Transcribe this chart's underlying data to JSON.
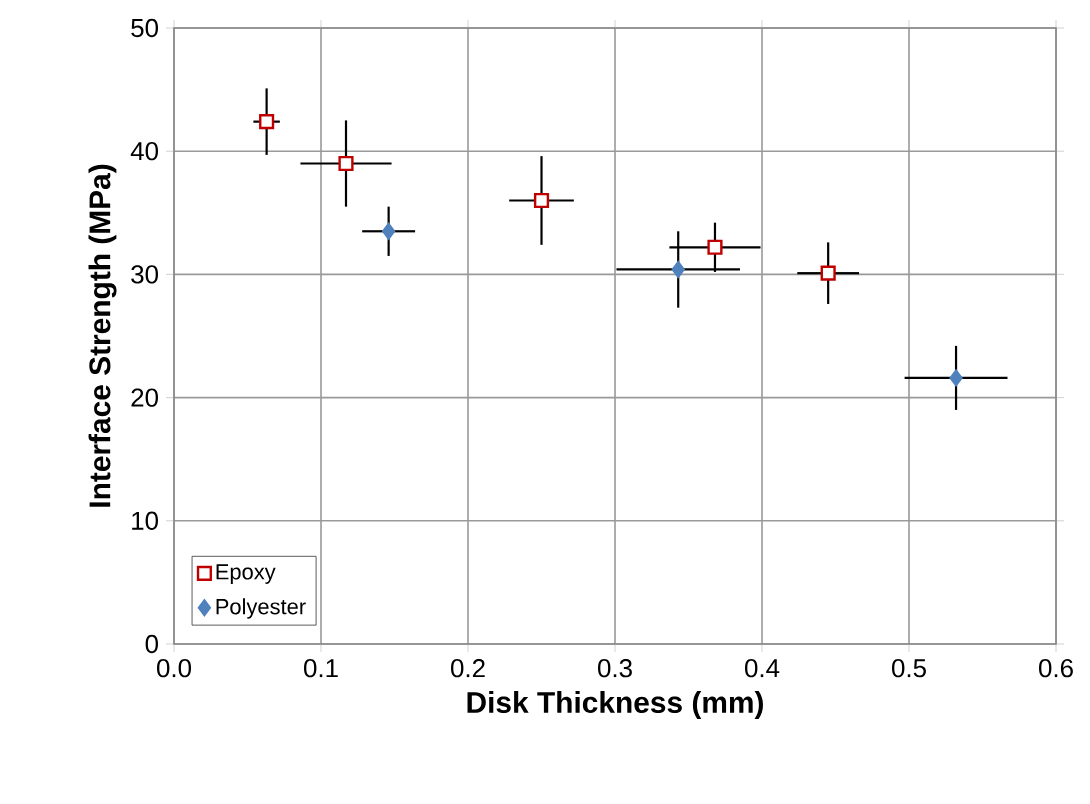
{
  "chart_data": {
    "type": "scatter",
    "xlabel": "Disk Thickness (mm)",
    "ylabel": "Interface Strength (MPa)",
    "xlim": [
      0,
      0.6
    ],
    "ylim": [
      0,
      50
    ],
    "xticks": [
      {
        "value": 0,
        "label": "0.0"
      },
      {
        "value": 0.1,
        "label": "0.1"
      },
      {
        "value": 0.2,
        "label": "0.2"
      },
      {
        "value": 0.3,
        "label": "0.3"
      },
      {
        "value": 0.4,
        "label": "0.4"
      },
      {
        "value": 0.5,
        "label": "0.5"
      },
      {
        "value": 0.6,
        "label": "0.6"
      }
    ],
    "yticks": [
      0,
      10,
      20,
      30,
      40,
      50
    ],
    "grid": true,
    "legend": "bottom left",
    "series": [
      {
        "name": "Epoxy",
        "color": "#c00000",
        "marker": "square",
        "x": [
          0.063,
          0.117,
          0.25,
          0.368,
          0.445
        ],
        "values": [
          42.4,
          39.0,
          36.0,
          32.2,
          30.1
        ],
        "errors": [
          2.7,
          3.5,
          3.6,
          2.0,
          2.5
        ],
        "xerrors": [
          0.009,
          0.031,
          0.022,
          0.031,
          0.021
        ]
      },
      {
        "name": "Polyester",
        "color": "#4f81bd",
        "marker": "diamond",
        "x": [
          0.146,
          0.343,
          0.532
        ],
        "values": [
          33.5,
          30.4,
          21.6
        ],
        "errors": [
          2.0,
          3.1,
          2.6
        ],
        "xerrors": [
          0.018,
          0.042,
          0.035
        ]
      }
    ]
  }
}
